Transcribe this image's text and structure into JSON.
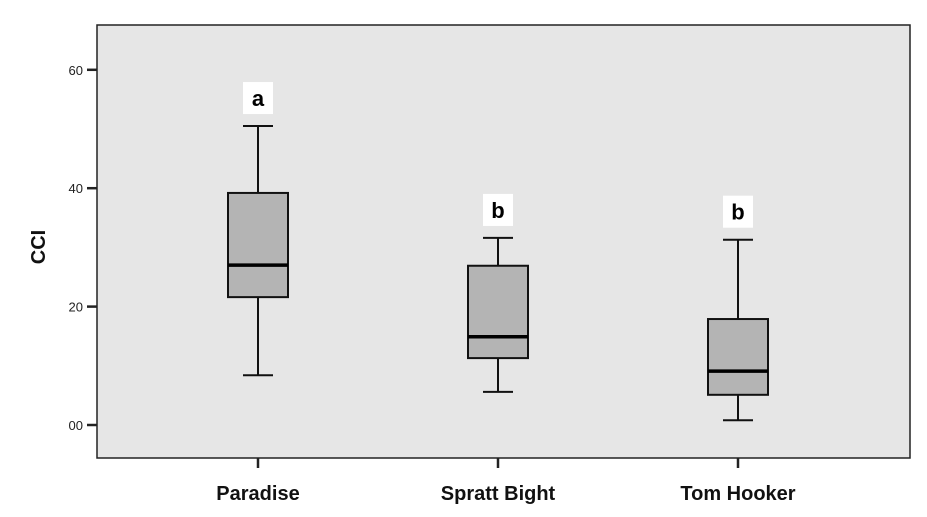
{
  "chart_data": {
    "type": "box",
    "title": "",
    "xlabel": "",
    "ylabel": "CCI",
    "ylim": [
      -5,
      67
    ],
    "yticks": [
      0,
      20,
      40,
      60
    ],
    "ytick_labels": [
      "00",
      "20",
      "40",
      "60"
    ],
    "grid": false,
    "background": "#e6e6e6",
    "box_color": "#b4b4b4",
    "categories": [
      "Paradise",
      "Spratt Bight",
      "Tom Hooker"
    ],
    "boxes": [
      {
        "category": "Paradise",
        "min": 8.4,
        "q1": 21.6,
        "median": 27.0,
        "q3": 39.2,
        "max": 50.5,
        "letter": "a"
      },
      {
        "category": "Spratt Bight",
        "min": 5.6,
        "q1": 11.3,
        "median": 14.9,
        "q3": 26.9,
        "max": 31.6,
        "letter": "b"
      },
      {
        "category": "Tom Hooker",
        "min": 0.8,
        "q1": 5.1,
        "median": 9.1,
        "q3": 17.9,
        "max": 31.3,
        "letter": "b"
      }
    ]
  }
}
